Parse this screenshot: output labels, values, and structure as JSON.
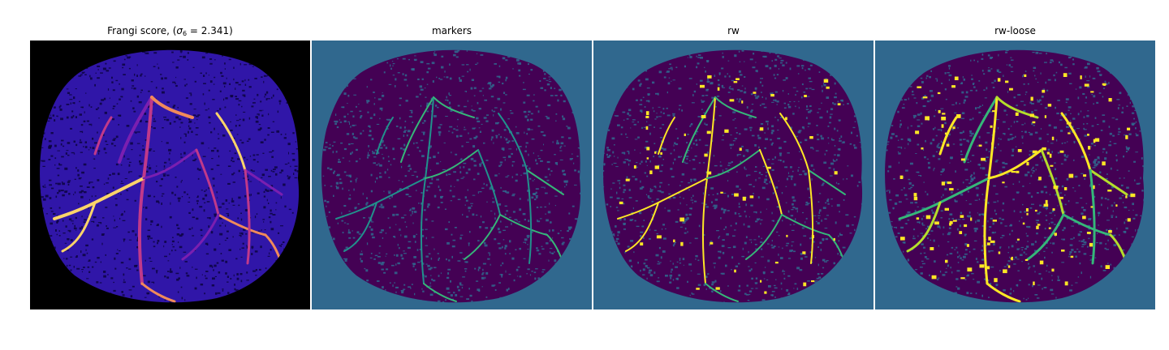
{
  "figure": {
    "panels": [
      {
        "id": "frangi",
        "title_prefix": "Frangi score, (",
        "title_sigma": "σ",
        "title_sub": "6",
        "title_suffix": " = 2.341)",
        "background": "#000000",
        "mask_color": "#3016a8",
        "texture_color": "#0c0440",
        "vessel_colors": [
          "#7a1fb0",
          "#c0398a",
          "#f08a5a",
          "#fcd46a"
        ]
      },
      {
        "id": "markers",
        "title": "markers",
        "background": "#30688e",
        "mask_color": "#440154",
        "texture_color": "#30688e",
        "vessel_colors": [
          "#35b779",
          "#21918c"
        ]
      },
      {
        "id": "rw",
        "title": "rw",
        "background": "#30688e",
        "mask_color": "#440154",
        "texture_color": "#30688e",
        "vessel_colors": [
          "#35b779",
          "#fde725"
        ]
      },
      {
        "id": "rw-loose",
        "title": "rw-loose",
        "background": "#30688e",
        "mask_color": "#440154",
        "texture_color": "#30688e",
        "vessel_colors": [
          "#35b779",
          "#fde725",
          "#b5de2b"
        ]
      }
    ]
  }
}
